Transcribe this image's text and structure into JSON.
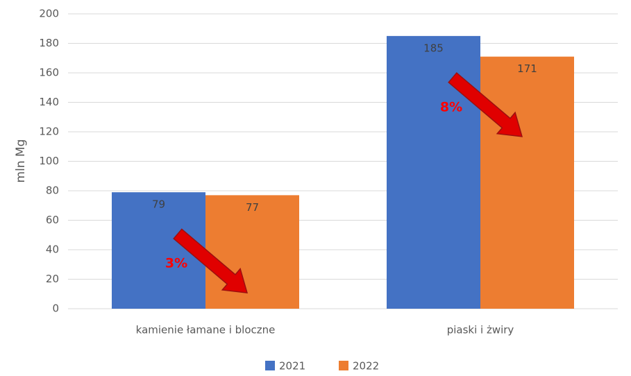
{
  "chart_data": {
    "type": "bar",
    "ylabel": "mln Mg",
    "categories": [
      "kamienie łamane i bloczne",
      "piaski i żwiry"
    ],
    "series": [
      {
        "name": "2021",
        "color": "#4472c4",
        "values": [
          79,
          185
        ]
      },
      {
        "name": "2022",
        "color": "#ed7d31",
        "values": [
          77,
          171
        ]
      }
    ],
    "ylim": [
      0,
      200
    ],
    "yticks": [
      0,
      20,
      40,
      60,
      80,
      100,
      120,
      140,
      160,
      180,
      200
    ],
    "grid": true,
    "legend": "bottom",
    "annotations": [
      {
        "text": "3%",
        "color": "#ff0000"
      },
      {
        "text": "8%",
        "color": "#ff0000"
      }
    ]
  }
}
